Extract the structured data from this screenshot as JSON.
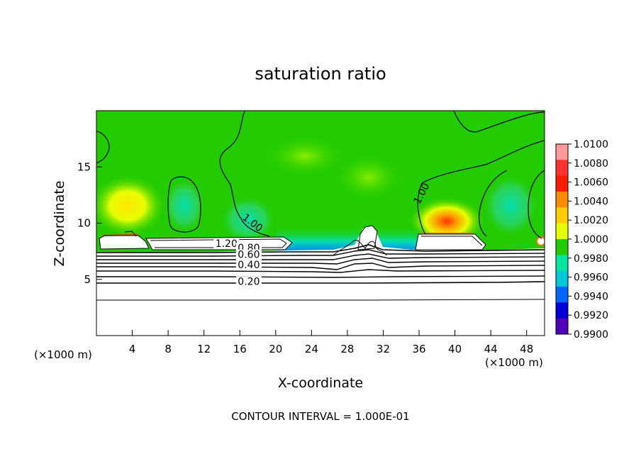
{
  "chart_data": {
    "type": "heatmap",
    "title": "saturation ratio",
    "xlabel": "X-coordinate",
    "ylabel": "Z-coordinate",
    "x_unit_left": "(×1000 m)",
    "x_unit_right": "(×1000 m)",
    "xlim": [
      0,
      50
    ],
    "ylim": [
      0,
      20
    ],
    "x_ticks": [
      4,
      8,
      12,
      16,
      20,
      24,
      28,
      32,
      36,
      40,
      44,
      48
    ],
    "y_ticks": [
      5,
      10,
      15
    ],
    "colorbar": {
      "ticks": [
        "1.0100",
        "1.0080",
        "1.0060",
        "1.0040",
        "1.0020",
        "1.0000",
        "0.9980",
        "0.9960",
        "0.9940",
        "0.9920",
        "0.9900"
      ],
      "colors": [
        "#ff9999",
        "#ff3030",
        "#ff1a00",
        "#ff8c00",
        "#ffcc00",
        "#e6ff00",
        "#22cc00",
        "#00e6a0",
        "#00c8d8",
        "#0066ff",
        "#0000dd",
        "#5000b8"
      ]
    },
    "contour_labels": [
      {
        "text": "1.00",
        "x": 17.2,
        "y": 9.8
      },
      {
        "text": "1.00",
        "x": 36.6,
        "y": 12.5
      },
      {
        "text": "1.20",
        "x": 14.5,
        "y": 7.9
      },
      {
        "text": "0.80",
        "x": 17.0,
        "y": 7.5
      },
      {
        "text": "0.60",
        "x": 17.0,
        "y": 6.9
      },
      {
        "text": "0.40",
        "x": 17.0,
        "y": 6.0
      },
      {
        "text": "0.20",
        "x": 17.0,
        "y": 4.5
      }
    ],
    "contour_interval_text": "CONTOUR INTERVAL = 1.000E-01"
  }
}
